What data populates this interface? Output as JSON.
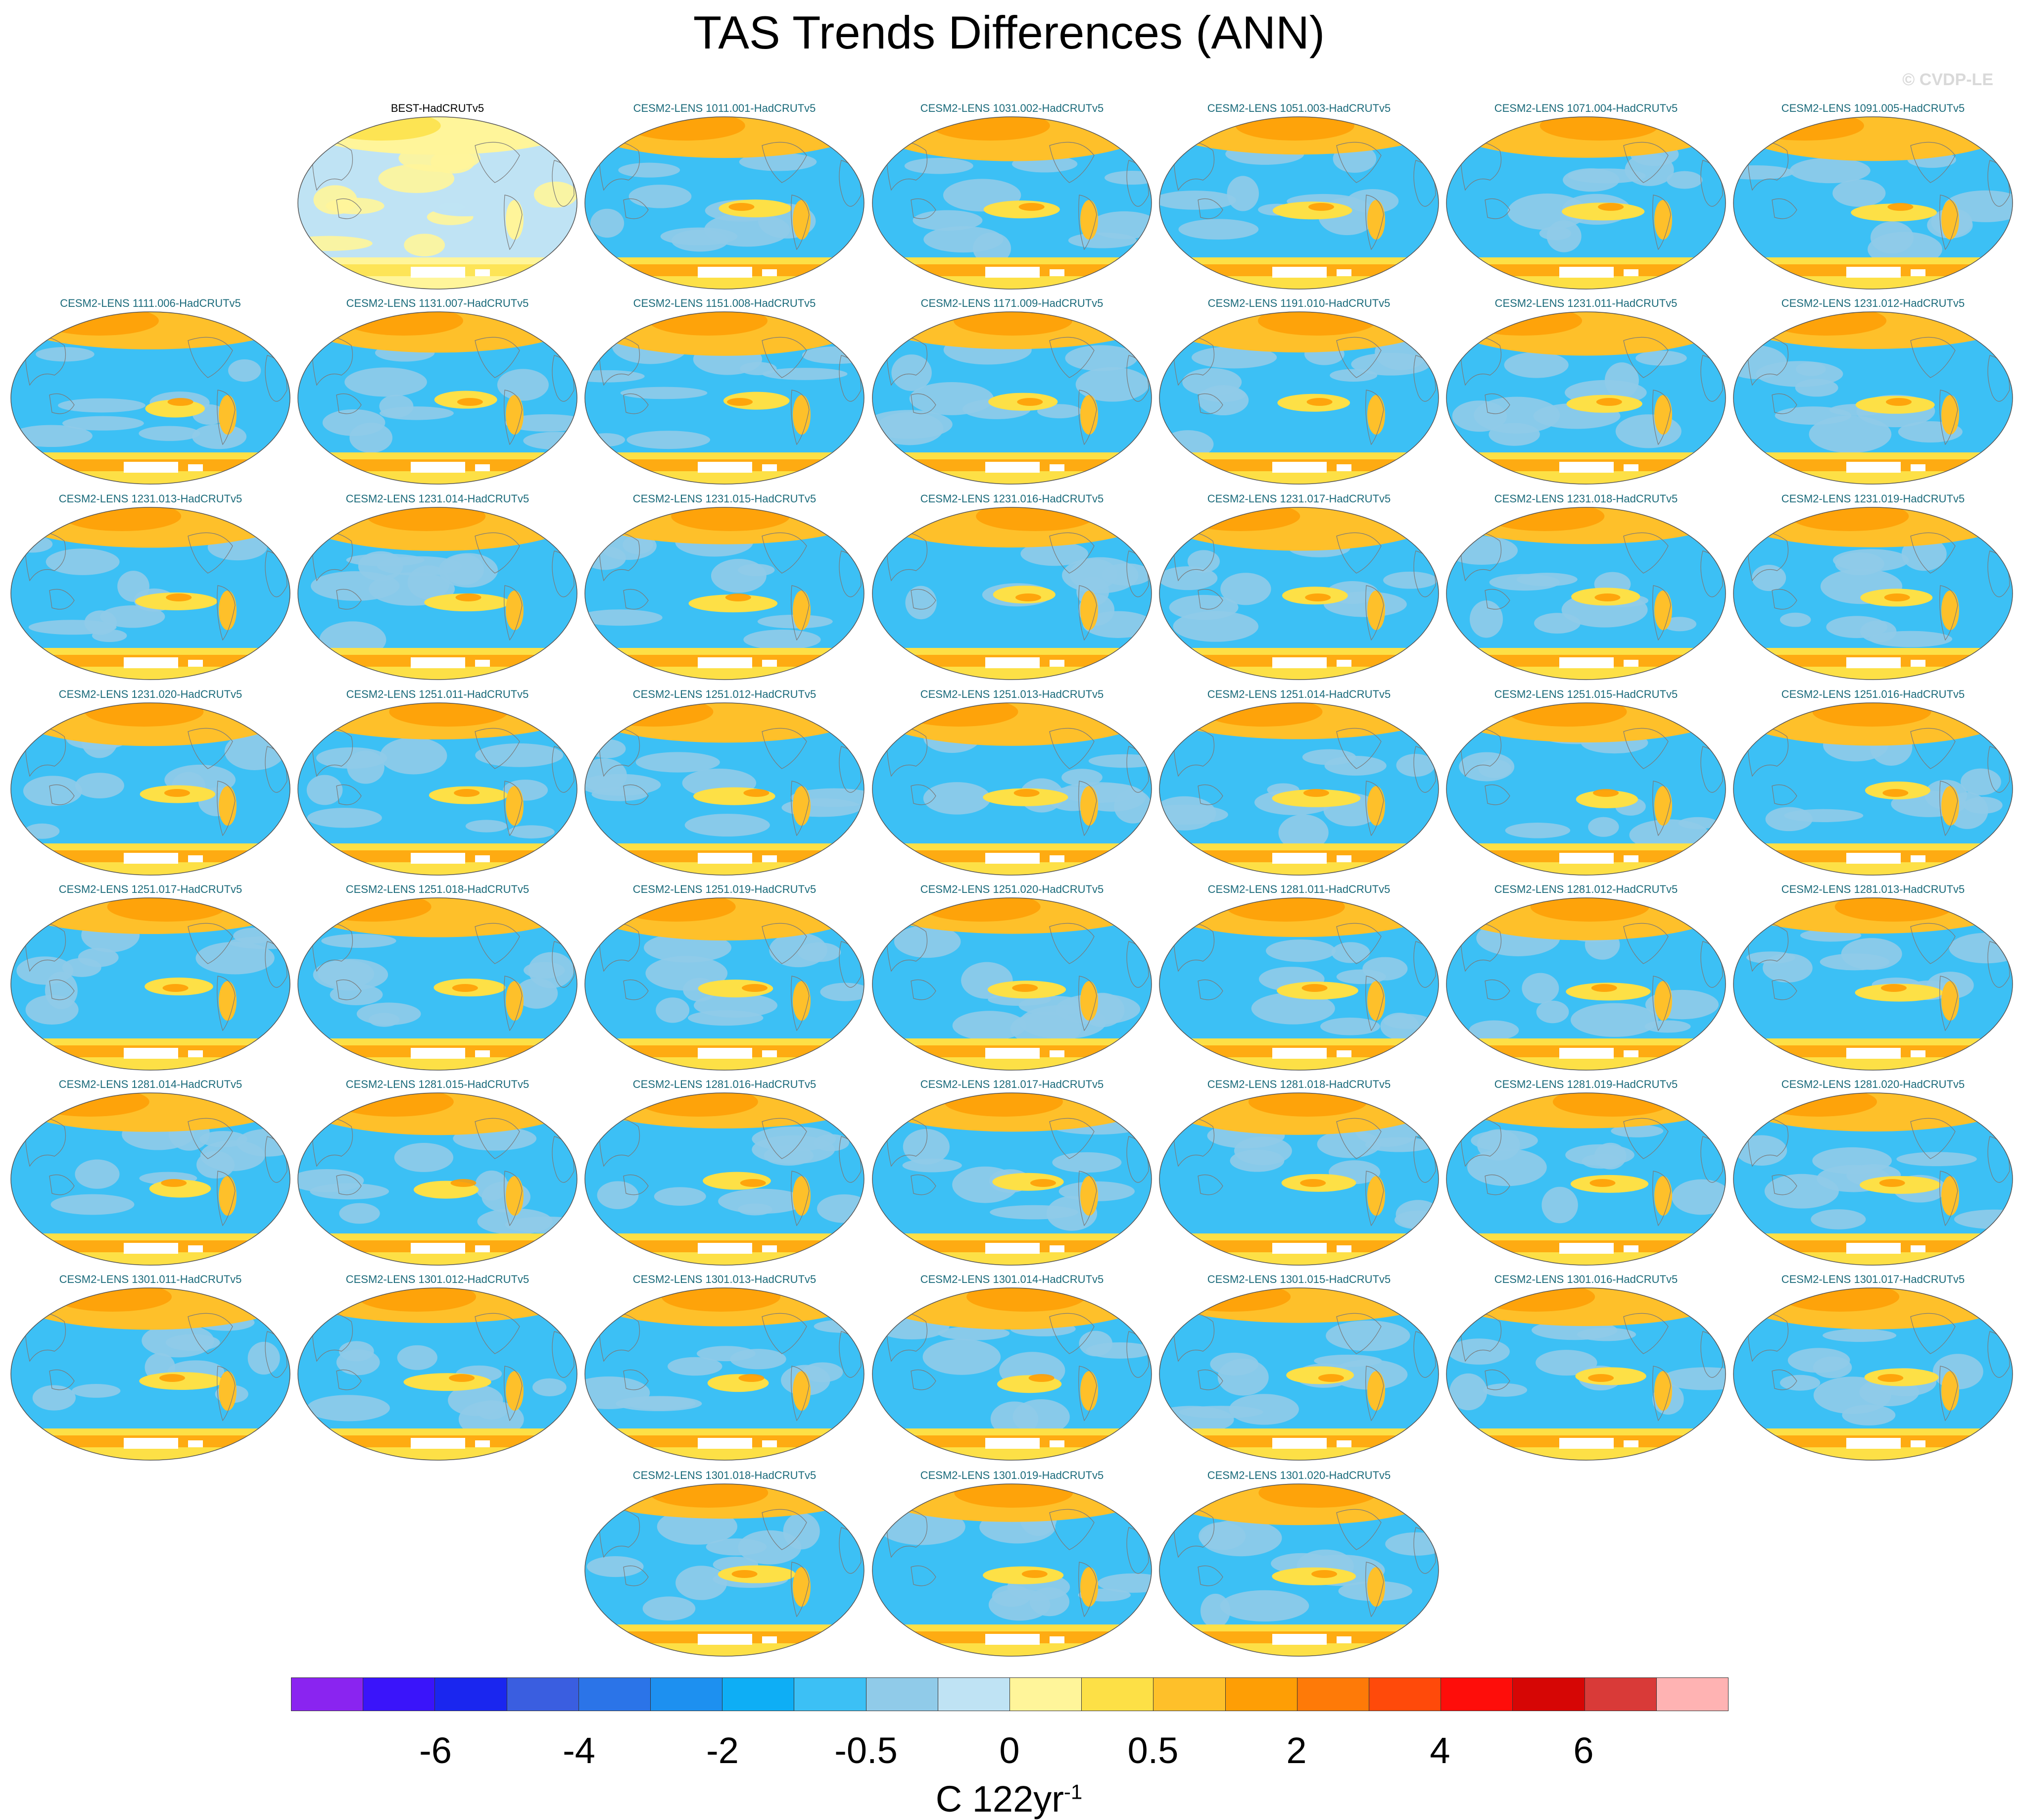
{
  "title": "TAS Trends Differences (ANN)",
  "watermark": "© CVDP-LE",
  "panels": [
    "BEST-HadCRUTv5",
    "CESM2-LENS 1011.001-HadCRUTv5",
    "CESM2-LENS 1031.002-HadCRUTv5",
    "CESM2-LENS 1051.003-HadCRUTv5",
    "CESM2-LENS 1071.004-HadCRUTv5",
    "CESM2-LENS 1091.005-HadCRUTv5",
    "CESM2-LENS 1111.006-HadCRUTv5",
    "CESM2-LENS 1131.007-HadCRUTv5",
    "CESM2-LENS 1151.008-HadCRUTv5",
    "CESM2-LENS 1171.009-HadCRUTv5",
    "CESM2-LENS 1191.010-HadCRUTv5",
    "CESM2-LENS 1231.011-HadCRUTv5",
    "CESM2-LENS 1231.012-HadCRUTv5",
    "CESM2-LENS 1231.013-HadCRUTv5",
    "CESM2-LENS 1231.014-HadCRUTv5",
    "CESM2-LENS 1231.015-HadCRUTv5",
    "CESM2-LENS 1231.016-HadCRUTv5",
    "CESM2-LENS 1231.017-HadCRUTv5",
    "CESM2-LENS 1231.018-HadCRUTv5",
    "CESM2-LENS 1231.019-HadCRUTv5",
    "CESM2-LENS 1231.020-HadCRUTv5",
    "CESM2-LENS 1251.011-HadCRUTv5",
    "CESM2-LENS 1251.012-HadCRUTv5",
    "CESM2-LENS 1251.013-HadCRUTv5",
    "CESM2-LENS 1251.014-HadCRUTv5",
    "CESM2-LENS 1251.015-HadCRUTv5",
    "CESM2-LENS 1251.016-HadCRUTv5",
    "CESM2-LENS 1251.017-HadCRUTv5",
    "CESM2-LENS 1251.018-HadCRUTv5",
    "CESM2-LENS 1251.019-HadCRUTv5",
    "CESM2-LENS 1251.020-HadCRUTv5",
    "CESM2-LENS 1281.011-HadCRUTv5",
    "CESM2-LENS 1281.012-HadCRUTv5",
    "CESM2-LENS 1281.013-HadCRUTv5",
    "CESM2-LENS 1281.014-HadCRUTv5",
    "CESM2-LENS 1281.015-HadCRUTv5",
    "CESM2-LENS 1281.016-HadCRUTv5",
    "CESM2-LENS 1281.017-HadCRUTv5",
    "CESM2-LENS 1281.018-HadCRUTv5",
    "CESM2-LENS 1281.019-HadCRUTv5",
    "CESM2-LENS 1281.020-HadCRUTv5",
    "CESM2-LENS 1301.011-HadCRUTv5",
    "CESM2-LENS 1301.012-HadCRUTv5",
    "CESM2-LENS 1301.013-HadCRUTv5",
    "CESM2-LENS 1301.014-HadCRUTv5",
    "CESM2-LENS 1301.015-HadCRUTv5",
    "CESM2-LENS 1301.016-HadCRUTv5",
    "CESM2-LENS 1301.017-HadCRUTv5",
    "CESM2-LENS 1301.018-HadCRUTv5",
    "CESM2-LENS 1301.019-HadCRUTv5",
    "CESM2-LENS 1301.020-HadCRUTv5"
  ],
  "colorbar": {
    "colors": [
      "#8a24f0",
      "#3a14fa",
      "#1a26ef",
      "#3a5ee0",
      "#2b74e8",
      "#1d90f0",
      "#0eaef5",
      "#3cc0f5",
      "#90cbe9",
      "#bfe3f4",
      "#fff59a",
      "#fde046",
      "#fec02a",
      "#fe9e05",
      "#fe7a08",
      "#ff4a0a",
      "#fe0d0a",
      "#d60605",
      "#d93a38",
      "#ffb3b3"
    ],
    "tick_labels": [
      "-6",
      "-4",
      "-2",
      "-0.5",
      "0",
      "0.5",
      "2",
      "4",
      "6"
    ],
    "units_text": "C 122yr",
    "units_exponent": "-1"
  }
}
